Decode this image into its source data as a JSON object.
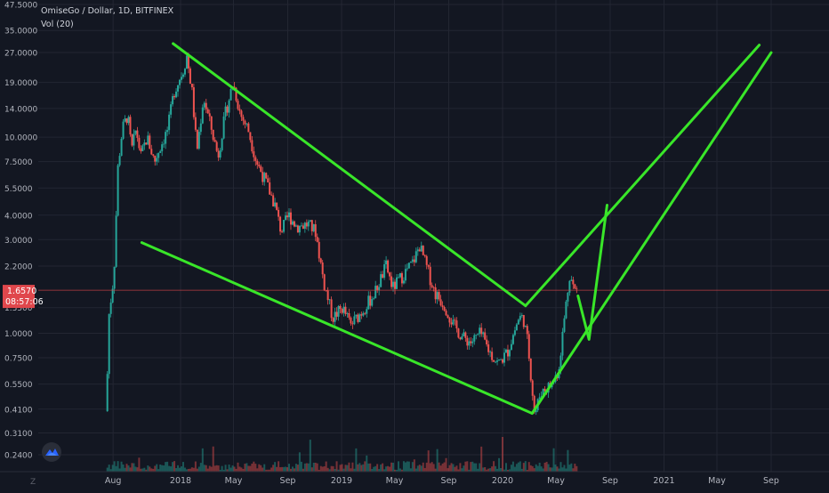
{
  "header": {
    "symbol_line": "OmiseGo / Dollar, 1D, BITFINEX",
    "indicator": "Vol (20)"
  },
  "price_label": {
    "value": "1.6570",
    "countdown": "08:57:06"
  },
  "colors": {
    "background": "#131722",
    "grid": "#232632",
    "axis_text": "#b2b5be",
    "up": "#26a69a",
    "down": "#ef5350",
    "trendline": "#39e629",
    "price_line": "#e0474c"
  },
  "icons": {
    "logo": "tradingview-cloud-icon",
    "timezone": "timezone-z-icon"
  },
  "timezone_text": "Z",
  "chart_data": {
    "type": "candlestick",
    "title": "OmiseGo / Dollar, 1D, BITFINEX",
    "indicator": "Vol (20)",
    "y_scale": "log",
    "y_ticks": [
      "0.2400",
      "0.3100",
      "0.4100",
      "0.5500",
      "0.7500",
      "1.0000",
      "1.3500",
      "1.6570",
      "2.2000",
      "3.0000",
      "4.0000",
      "5.5000",
      "7.5000",
      "10.0000",
      "14.0000",
      "19.0000",
      "27.0000",
      "35.0000",
      "47.5000"
    ],
    "x_ticks": [
      "Aug",
      "2018",
      "May",
      "Sep",
      "2019",
      "May",
      "Sep",
      "2020",
      "May",
      "Sep",
      "2021",
      "May",
      "Sep"
    ],
    "last_price": 1.657,
    "price_path": [
      [
        "2017-07-15",
        0.4
      ],
      [
        "2017-07-20",
        1.2
      ],
      [
        "2017-08-01",
        2.0
      ],
      [
        "2017-08-10",
        7.0
      ],
      [
        "2017-08-20",
        11.0
      ],
      [
        "2017-09-01",
        13.0
      ],
      [
        "2017-09-10",
        8.5
      ],
      [
        "2017-09-20",
        11.0
      ],
      [
        "2017-10-01",
        8.0
      ],
      [
        "2017-10-15",
        10.0
      ],
      [
        "2017-11-01",
        7.5
      ],
      [
        "2017-11-10",
        8.5
      ],
      [
        "2017-12-01",
        11.0
      ],
      [
        "2017-12-15",
        17.0
      ],
      [
        "2018-01-05",
        22.0
      ],
      [
        "2018-01-13",
        26.0
      ],
      [
        "2018-01-25",
        17.0
      ],
      [
        "2018-02-05",
        8.5
      ],
      [
        "2018-02-20",
        16.0
      ],
      [
        "2018-03-10",
        11.0
      ],
      [
        "2018-03-25",
        8.0
      ],
      [
        "2018-04-10",
        13.0
      ],
      [
        "2018-04-28",
        19.0
      ],
      [
        "2018-05-15",
        13.0
      ],
      [
        "2018-06-01",
        11.0
      ],
      [
        "2018-06-20",
        7.5
      ],
      [
        "2018-07-10",
        6.0
      ],
      [
        "2018-08-01",
        4.5
      ],
      [
        "2018-08-15",
        3.3
      ],
      [
        "2018-09-01",
        4.0
      ],
      [
        "2018-09-20",
        3.5
      ],
      [
        "2018-10-15",
        3.6
      ],
      [
        "2018-11-01",
        3.3
      ],
      [
        "2018-11-20",
        1.8
      ],
      [
        "2018-12-10",
        1.2
      ],
      [
        "2019-01-01",
        1.35
      ],
      [
        "2019-01-20",
        1.1
      ],
      [
        "2019-02-15",
        1.3
      ],
      [
        "2019-03-15",
        1.6
      ],
      [
        "2019-04-10",
        2.2
      ],
      [
        "2019-04-25",
        1.7
      ],
      [
        "2019-05-20",
        2.0
      ],
      [
        "2019-06-10",
        2.3
      ],
      [
        "2019-06-25",
        2.8
      ],
      [
        "2019-07-10",
        2.2
      ],
      [
        "2019-07-30",
        1.6
      ],
      [
        "2019-08-20",
        1.4
      ],
      [
        "2019-09-10",
        1.1
      ],
      [
        "2019-10-01",
        0.95
      ],
      [
        "2019-10-20",
        0.9
      ],
      [
        "2019-11-10",
        1.0
      ],
      [
        "2019-12-01",
        0.8
      ],
      [
        "2019-12-20",
        0.7
      ],
      [
        "2020-01-10",
        0.8
      ],
      [
        "2020-02-05",
        1.2
      ],
      [
        "2020-02-15",
        1.2
      ],
      [
        "2020-02-25",
        0.9
      ],
      [
        "2020-03-12",
        0.38
      ],
      [
        "2020-03-25",
        0.5
      ],
      [
        "2020-04-20",
        0.55
      ],
      [
        "2020-05-05",
        0.65
      ],
      [
        "2020-05-20",
        1.3
      ],
      [
        "2020-05-30",
        2.0
      ],
      [
        "2020-06-10",
        1.65
      ],
      [
        "2020-06-15",
        1.657
      ]
    ],
    "trendlines": [
      [
        [
          "2017-12-15",
          30.0
        ],
        [
          "2020-02-22",
          1.38
        ]
      ],
      [
        [
          "2017-10-05",
          2.9
        ],
        [
          "2020-03-08",
          0.39
        ]
      ],
      [
        [
          "2020-03-08",
          0.39
        ],
        [
          "2021-09-01",
          27.0
        ]
      ],
      [
        [
          "2020-02-22",
          1.38
        ],
        [
          "2021-08-05",
          29.5
        ]
      ],
      [
        [
          "2020-06-20",
          1.55
        ],
        [
          "2020-07-15",
          0.93
        ],
        [
          "2020-08-25",
          4.5
        ]
      ]
    ]
  }
}
